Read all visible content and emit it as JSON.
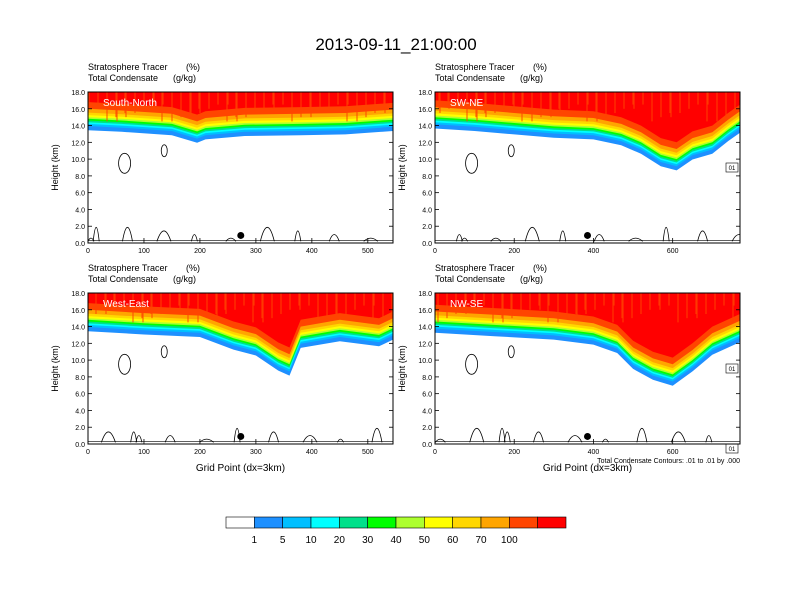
{
  "title": "2013-09-11_21:00:00",
  "panel_header": {
    "line1": "Stratosphere Tracer",
    "line1_unit": "(%)",
    "line2": "Total Condensate",
    "line2_unit": "(g/kg)"
  },
  "ylabel": "Height (km)",
  "xlabel": "Grid Point (dx=3km)",
  "contour_note": "Total Condensate Contours: .01 to .01 by .000",
  "colors": {
    "levels": [
      "#ffffff",
      "#1e90ff",
      "#00bfff",
      "#00ffff",
      "#00e08a",
      "#00ff00",
      "#adff2f",
      "#ffff00",
      "#ffd700",
      "#ffa500",
      "#ff4500",
      "#ff0000"
    ],
    "contour": "#000000"
  },
  "colorbar_labels": [
    "1",
    "5",
    "10",
    "20",
    "30",
    "40",
    "50",
    "60",
    "70",
    "100"
  ],
  "chart_data": [
    {
      "type": "heatmap",
      "name": "South-North",
      "label": "South-North",
      "xlim": [
        0,
        545
      ],
      "ylim": [
        0,
        18
      ],
      "xticks": [
        "0",
        "100",
        "200",
        "300",
        "400",
        "500"
      ],
      "yticks": [
        "0.0",
        "2.0",
        "4.0",
        "6.0",
        "8.0",
        "10.0",
        "12.0",
        "14.0",
        "16.0",
        "18.0"
      ],
      "marker_x": 273,
      "tropopause": [
        [
          0,
          13.8
        ],
        [
          60,
          13.6
        ],
        [
          150,
          13.2
        ],
        [
          195,
          12.3
        ],
        [
          210,
          12.7
        ],
        [
          280,
          13.1
        ],
        [
          380,
          13.2
        ],
        [
          460,
          13.3
        ],
        [
          545,
          13.7
        ]
      ],
      "box_labels": []
    },
    {
      "type": "heatmap",
      "name": "SW-NE",
      "label": "SW-NE",
      "xlim": [
        0,
        770
      ],
      "ylim": [
        0,
        18
      ],
      "xticks": [
        "0",
        "200",
        "400",
        "600"
      ],
      "yticks": [
        "0.0",
        "2.0",
        "4.0",
        "6.0",
        "8.0",
        "10.0",
        "12.0",
        "14.0",
        "16.0",
        "18.0"
      ],
      "marker_x": 385,
      "tropopause": [
        [
          0,
          14.0
        ],
        [
          100,
          13.7
        ],
        [
          200,
          13.3
        ],
        [
          300,
          12.9
        ],
        [
          400,
          12.7
        ],
        [
          470,
          12.0
        ],
        [
          520,
          11.0
        ],
        [
          570,
          9.5
        ],
        [
          610,
          9.0
        ],
        [
          650,
          10.3
        ],
        [
          700,
          11.0
        ],
        [
          740,
          12.5
        ],
        [
          770,
          13.5
        ]
      ],
      "box_labels": [
        "01"
      ]
    },
    {
      "type": "heatmap",
      "name": "West-East",
      "label": "West-East",
      "xlim": [
        0,
        545
      ],
      "ylim": [
        0,
        18
      ],
      "xticks": [
        "0",
        "100",
        "200",
        "300",
        "400",
        "500"
      ],
      "yticks": [
        "0.0",
        "2.0",
        "4.0",
        "6.0",
        "8.0",
        "10.0",
        "12.0",
        "14.0",
        "16.0",
        "18.0"
      ],
      "marker_x": 273,
      "tropopause": [
        [
          0,
          13.8
        ],
        [
          100,
          13.4
        ],
        [
          200,
          13.1
        ],
        [
          260,
          11.6
        ],
        [
          300,
          10.9
        ],
        [
          340,
          9.1
        ],
        [
          360,
          8.5
        ],
        [
          380,
          11.8
        ],
        [
          450,
          12.6
        ],
        [
          520,
          12.0
        ],
        [
          545,
          12.8
        ]
      ],
      "box_labels": []
    },
    {
      "type": "heatmap",
      "name": "NW-SE",
      "label": "NW-SE",
      "xlim": [
        0,
        770
      ],
      "ylim": [
        0,
        18
      ],
      "xticks": [
        "0",
        "200",
        "400",
        "600"
      ],
      "yticks": [
        "0.0",
        "2.0",
        "4.0",
        "6.0",
        "8.0",
        "10.0",
        "12.0",
        "14.0",
        "16.0",
        "18.0"
      ],
      "marker_x": 385,
      "tropopause": [
        [
          0,
          13.6
        ],
        [
          150,
          13.2
        ],
        [
          300,
          12.8
        ],
        [
          400,
          12.2
        ],
        [
          460,
          11.2
        ],
        [
          500,
          9.3
        ],
        [
          550,
          8.0
        ],
        [
          600,
          7.3
        ],
        [
          650,
          9.0
        ],
        [
          700,
          11.0
        ],
        [
          770,
          12.5
        ]
      ],
      "box_labels": [
        "01",
        "01"
      ]
    }
  ]
}
